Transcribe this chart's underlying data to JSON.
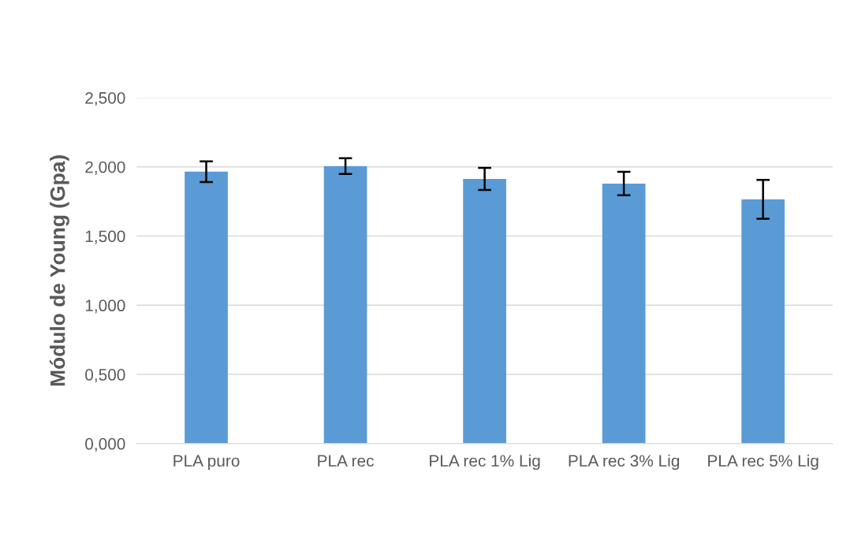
{
  "chart_data": {
    "type": "bar",
    "ylabel": "Módulo de Young (Gpa)",
    "categories": [
      "PLA puro",
      "PLA rec",
      "PLA rec 1% Lig",
      "PLA rec 3% Lig",
      "PLA rec 5% Lig"
    ],
    "values": [
      1.965,
      2.005,
      1.913,
      1.879,
      1.765
    ],
    "errors": [
      0.075,
      0.057,
      0.08,
      0.085,
      0.14
    ],
    "color": "#5b9bd5",
    "ylim": [
      0,
      2.5
    ],
    "yticks": [
      {
        "value": 0,
        "label": "0,000"
      },
      {
        "value": 0.5,
        "label": "0,500"
      },
      {
        "value": 1,
        "label": "1,000"
      },
      {
        "value": 1.5,
        "label": "1,500"
      },
      {
        "value": 2,
        "label": "2,000"
      },
      {
        "value": 2.5,
        "label": "2,500"
      }
    ],
    "grid": "y"
  }
}
